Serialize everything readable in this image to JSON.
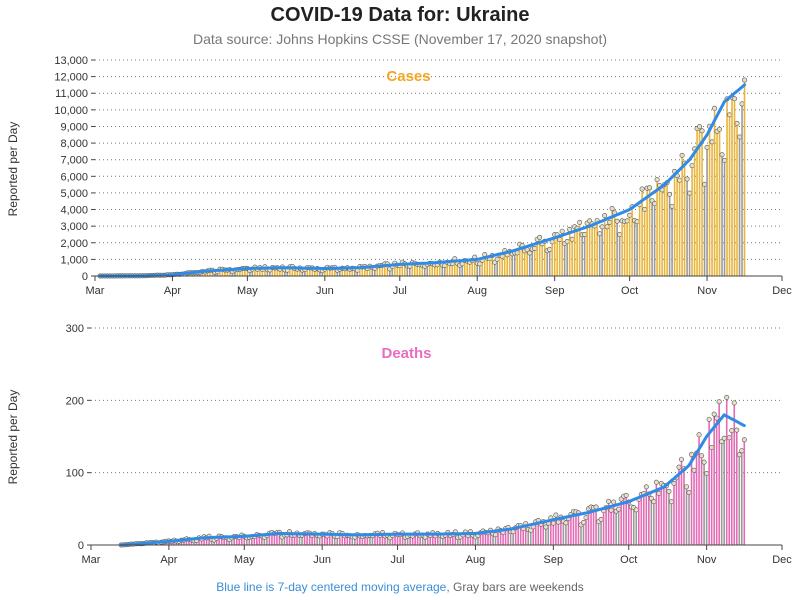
{
  "title": "COVID-19 Data for: Ukraine",
  "subtitle": "Data source: Johns Hopkins CSSE (November 17, 2020 snapshot)",
  "footnote": {
    "blue": "Blue line is 7-day centered moving average,",
    "gray": "Gray bars are weekends"
  },
  "colors": {
    "cases_bar": "#e8b53c",
    "deaths_bar": "#e36bb5",
    "weekend_bar": "#9a9a9a",
    "moving_average": "#2f8be6",
    "cases_label": "#f5a623",
    "deaths_label": "#e96dbf",
    "marker_fill": "#e6e0c8"
  },
  "chart_data": [
    {
      "type": "bar",
      "panel": "cases",
      "label": "Cases",
      "ylabel": "Reported per Day",
      "ylim": [
        0,
        13000
      ],
      "yticks": [
        0,
        1000,
        2000,
        3000,
        4000,
        5000,
        6000,
        7000,
        8000,
        9000,
        10000,
        11000,
        12000,
        13000
      ],
      "ytick_labels": [
        "0",
        "1,000",
        "2,000",
        "3,000",
        "4,000",
        "5,000",
        "6,000",
        "7,000",
        "8,000",
        "9,000",
        "10,000",
        "11,000",
        "12,000",
        "13,000"
      ],
      "xlim": [
        "2020-03-01",
        "2020-12-01"
      ],
      "xticks": [
        "2020-03-01",
        "2020-04-01",
        "2020-05-01",
        "2020-06-01",
        "2020-07-01",
        "2020-08-01",
        "2020-09-01",
        "2020-10-01",
        "2020-11-01",
        "2020-12-01"
      ],
      "xtick_labels": [
        "Mar",
        "Apr",
        "May",
        "Jun",
        "Jul",
        "Aug",
        "Sep",
        "Oct",
        "Nov",
        "Dec"
      ],
      "grid": "horizontal-dotted",
      "daily_anchor_dates": [
        "2020-03-03",
        "2020-03-20",
        "2020-04-01",
        "2020-04-15",
        "2020-05-01",
        "2020-05-15",
        "2020-06-01",
        "2020-06-15",
        "2020-07-01",
        "2020-07-15",
        "2020-08-01",
        "2020-08-15",
        "2020-09-01",
        "2020-09-15",
        "2020-10-01",
        "2020-10-15",
        "2020-10-25",
        "2020-11-01",
        "2020-11-08",
        "2020-11-16"
      ],
      "moving_average_values": [
        0,
        10,
        80,
        300,
        450,
        500,
        450,
        500,
        700,
        800,
        1000,
        1500,
        2300,
        3000,
        4000,
        5500,
        7000,
        8500,
        10500,
        11500
      ],
      "daily_peak_value": 12800
    },
    {
      "type": "bar",
      "panel": "deaths",
      "label": "Deaths",
      "ylabel": "Reported per Day",
      "ylim": [
        0,
        300
      ],
      "yticks": [
        0,
        100,
        200,
        300
      ],
      "ytick_labels": [
        "0",
        "100",
        "200",
        "300"
      ],
      "xlim": [
        "2020-03-01",
        "2020-12-01"
      ],
      "xticks": [
        "2020-03-01",
        "2020-04-01",
        "2020-05-01",
        "2020-06-01",
        "2020-07-01",
        "2020-08-01",
        "2020-09-01",
        "2020-10-01",
        "2020-11-01",
        "2020-12-01"
      ],
      "xtick_labels": [
        "Mar",
        "Apr",
        "May",
        "Jun",
        "Jul",
        "Aug",
        "Sep",
        "Oct",
        "Nov",
        "Dec"
      ],
      "grid": "horizontal-dotted",
      "daily_anchor_dates": [
        "2020-03-13",
        "2020-04-01",
        "2020-04-15",
        "2020-05-01",
        "2020-05-15",
        "2020-06-01",
        "2020-06-15",
        "2020-07-01",
        "2020-07-15",
        "2020-08-01",
        "2020-08-15",
        "2020-09-01",
        "2020-09-15",
        "2020-10-01",
        "2020-10-15",
        "2020-10-25",
        "2020-11-01",
        "2020-11-08",
        "2020-11-16"
      ],
      "moving_average_values": [
        0,
        5,
        10,
        12,
        16,
        15,
        14,
        15,
        15,
        16,
        22,
        35,
        45,
        60,
        80,
        110,
        150,
        180,
        165
      ],
      "daily_peak_value": 210
    }
  ]
}
